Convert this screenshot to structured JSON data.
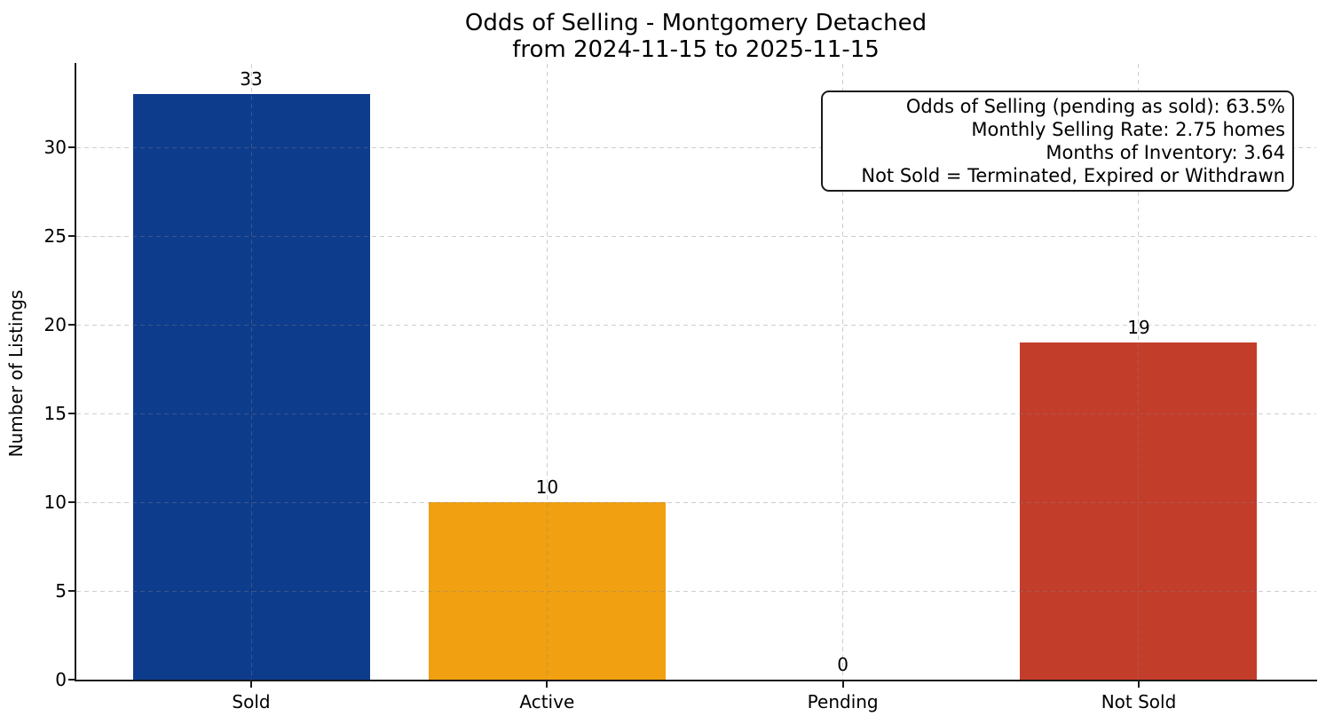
{
  "chart_data": {
    "type": "bar",
    "title": "Odds of Selling - Montgomery Detached",
    "subtitle": "from 2024-11-15 to 2025-11-15",
    "xlabel": "",
    "ylabel": "Number of Listings",
    "categories": [
      "Sold",
      "Active",
      "Pending",
      "Not Sold"
    ],
    "values": [
      33,
      10,
      0,
      19
    ],
    "value_labels": [
      "33",
      "10",
      "0",
      "19"
    ],
    "bar_colors": [
      "#0e3c8d",
      "#f1a011",
      null,
      "#c33d2b"
    ],
    "yticks": [
      0,
      5,
      10,
      15,
      20,
      25,
      30
    ],
    "ylim": [
      0,
      34.65
    ],
    "grid": {
      "style": "dashed",
      "axes": "both",
      "color": "#808080",
      "alpha": 0.38,
      "drawn_above_bars": true
    },
    "legend": "none",
    "annotation_box": {
      "position": "top-right",
      "text_align": "right",
      "lines": [
        "Odds of Selling (pending as sold): 63.5%",
        "Monthly Selling Rate: 2.75 homes",
        "Months of Inventory: 3.64",
        "Not Sold = Terminated, Expired or Withdrawn"
      ]
    }
  }
}
